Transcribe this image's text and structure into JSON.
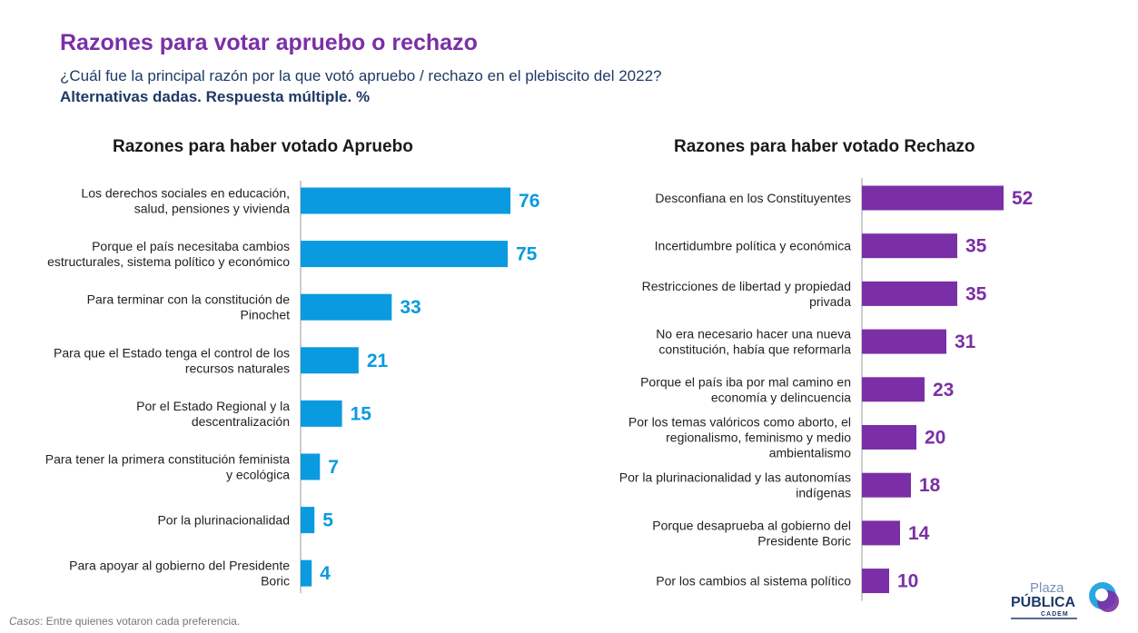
{
  "header": {
    "title": "Razones para votar apruebo o rechazo",
    "subtitle": "¿Cuál fue la principal razón por la que votó apruebo / rechazo en el plebiscito del 2022?",
    "subtitle2": "Alternativas dadas. Respuesta múltiple. %"
  },
  "chart_data": [
    {
      "type": "bar",
      "orientation": "horizontal",
      "title": "Razones para haber votado Apruebo",
      "color": "#0a9ae0",
      "categories": [
        "Los derechos sociales en educación, salud, pensiones y vivienda",
        "Porque el país necesitaba cambios estructurales, sistema político y económico",
        "Para terminar con la constitución de Pinochet",
        "Para que el Estado tenga el control de los recursos naturales",
        "Por el Estado Regional y la descentralización",
        "Para tener la primera constitución feminista y ecológica",
        "Por la plurinacionalidad",
        "Para apoyar al gobierno del Presidente Boric"
      ],
      "values": [
        76,
        75,
        33,
        21,
        15,
        7,
        5,
        4
      ]
    },
    {
      "type": "bar",
      "orientation": "horizontal",
      "title": "Razones para haber votado Rechazo",
      "color": "#7b2fa6",
      "categories": [
        "Desconfiana en los Constituyentes",
        "Incertidumbre política y económica",
        "Restricciones de libertad y propiedad privada",
        "No era necesario hacer una nueva constitución, había que reformarla",
        "Porque el país iba por mal camino en economía y delincuencia",
        "Por los temas valóricos como aborto, el regionalismo, feminismo y medio ambientalismo",
        "Por la plurinacionalidad y las autonomías indígenas",
        "Porque desaprueba al gobierno del Presidente Boric",
        "Por los cambios al sistema político"
      ],
      "values": [
        52,
        35,
        35,
        31,
        23,
        20,
        18,
        14,
        10
      ]
    }
  ],
  "footer": {
    "casos_label": "Casos",
    "casos_text": ": Entre quienes votaron cada preferencia."
  },
  "logo": {
    "line1": "Plaza",
    "line2": "PÚBLICA",
    "line3": "CADEM"
  }
}
